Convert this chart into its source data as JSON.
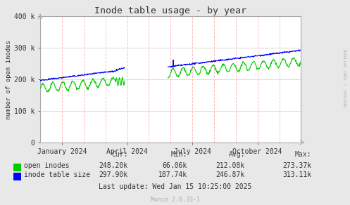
{
  "title": "Inode table usage - by year",
  "ylabel": "number of open inodes",
  "bg_color": "#e8e8e8",
  "plot_bg_color": "#ffffff",
  "open_inodes_color": "#00cc00",
  "inode_table_color": "#0000ff",
  "watermark": "RRDTOOL / TOBI OETIKER",
  "munin_version": "Munin 2.0.33-1",
  "open_inodes_stats": [
    "248.20k",
    "66.06k",
    "212.08k",
    "273.37k"
  ],
  "inode_table_stats": [
    "297.90k",
    "187.74k",
    "246.87k",
    "313.11k"
  ],
  "last_update": "Last update: Wed Jan 15 10:25:00 2025",
  "xticklabels": [
    "January 2024",
    "April 2024",
    "July 2024",
    "October 2024"
  ]
}
